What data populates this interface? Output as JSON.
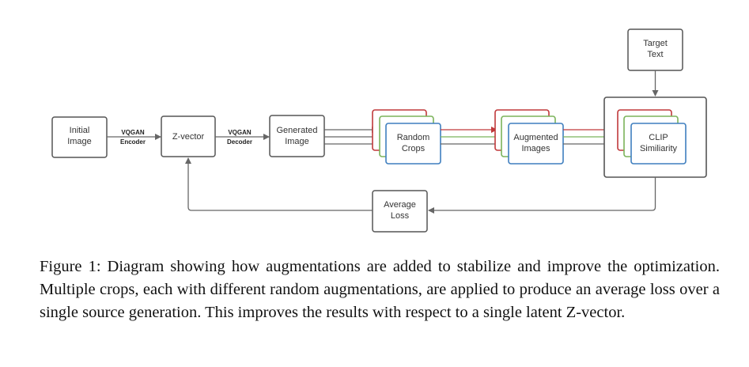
{
  "nodes": {
    "initial_image": [
      "Initial",
      "Image"
    ],
    "z_vector": [
      "Z-vector"
    ],
    "generated_image": [
      "Generated",
      "Image"
    ],
    "random_crops": [
      "Random",
      "Crops"
    ],
    "augmented_images": [
      "Augmented",
      "Images"
    ],
    "clip_similarity": [
      "CLIP",
      "Similiarity"
    ],
    "target_text": [
      "Target",
      "Text"
    ],
    "average_loss": [
      "Average",
      "Loss"
    ]
  },
  "edges": {
    "encoder": [
      "VQGAN",
      "Encoder"
    ],
    "decoder": [
      "VQGAN",
      "Decoder"
    ]
  },
  "colors": {
    "box_border": "#555555",
    "edge": "#666666",
    "red": "#c0393b",
    "green": "#7bb35a",
    "blue": "#3f7fbf"
  },
  "caption": "Figure 1: Diagram showing how augmentations are added to stabilize and improve the optimization. Multiple crops, each with different random augmentations, are applied to produce an average loss over a single source generation. This improves the results with respect to a single latent Z-vector."
}
